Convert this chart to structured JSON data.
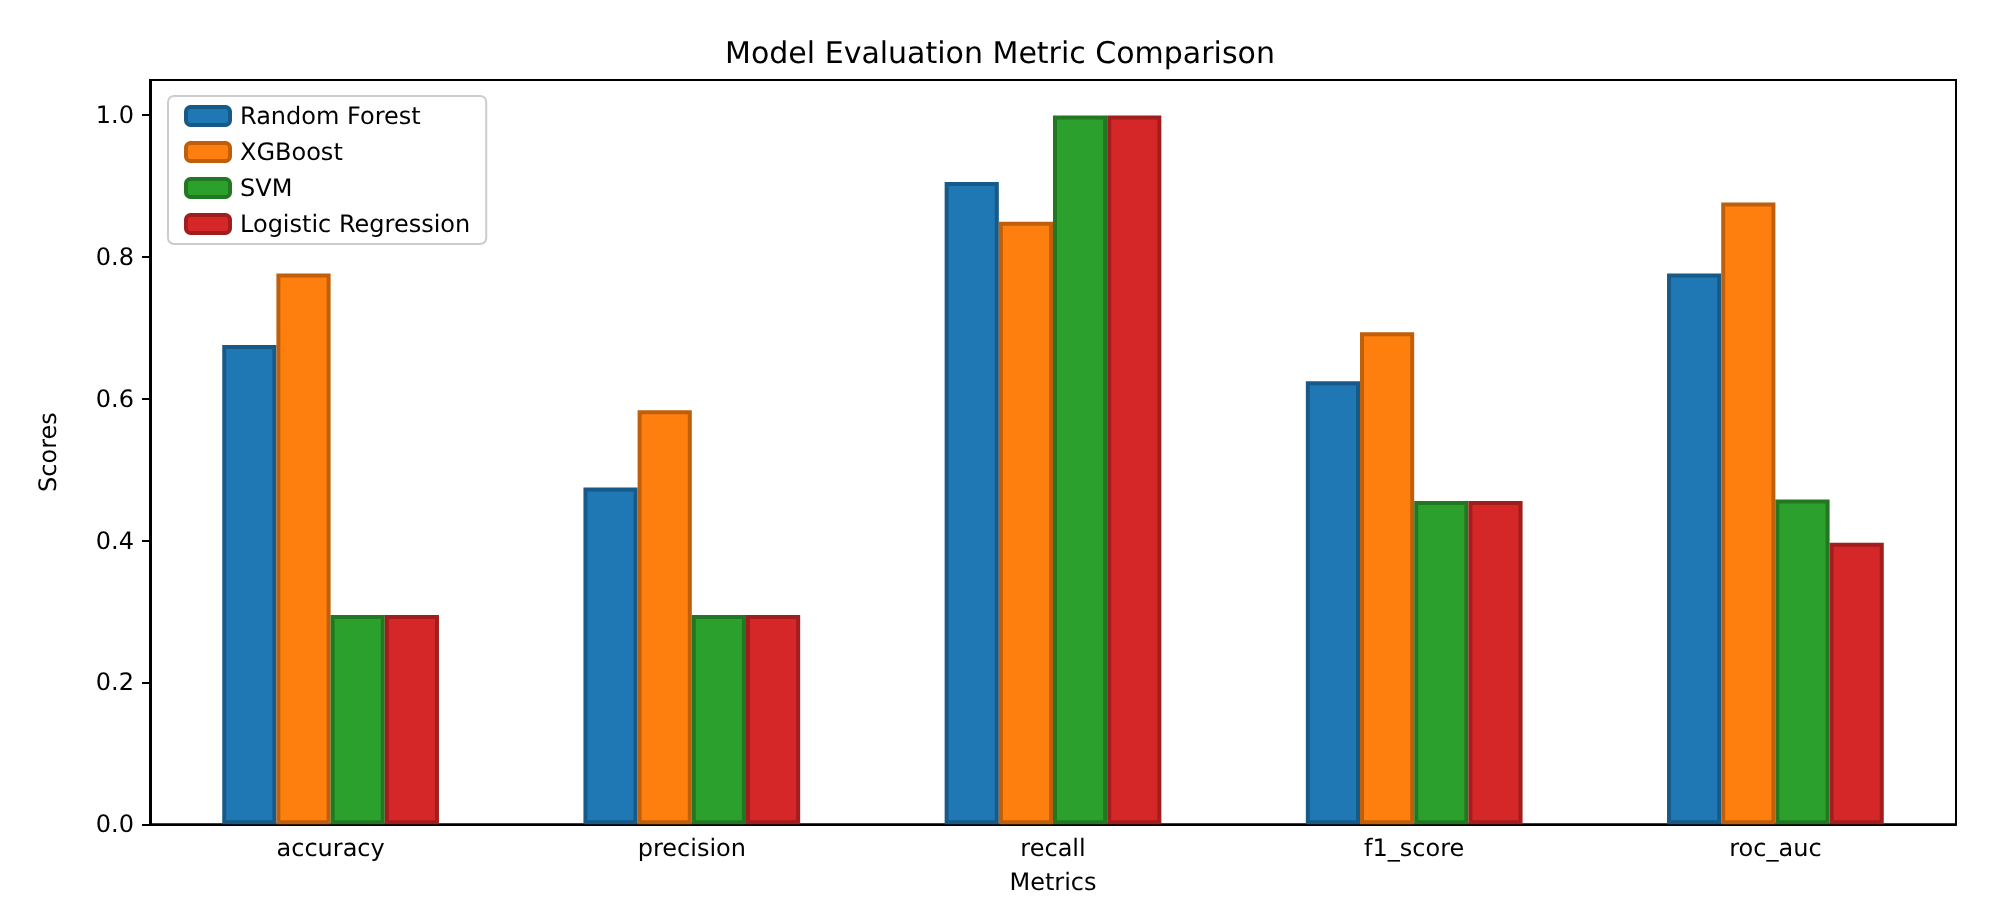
{
  "chart_data": {
    "type": "bar",
    "title": "Model Evaluation Metric Comparison",
    "xlabel": "Metrics",
    "ylabel": "Scores",
    "categories": [
      "accuracy",
      "precision",
      "recall",
      "f1_score",
      "roc_auc"
    ],
    "series": [
      {
        "name": "Random Forest",
        "color": "#1f77b4",
        "values": [
          0.676,
          0.475,
          0.906,
          0.625,
          0.777
        ]
      },
      {
        "name": "XGBoost",
        "color": "#ff7f0e",
        "values": [
          0.777,
          0.584,
          0.85,
          0.694,
          0.877
        ]
      },
      {
        "name": "SVM",
        "color": "#2ca02c",
        "values": [
          0.295,
          0.295,
          1.0,
          0.456,
          0.458
        ]
      },
      {
        "name": "Logistic Regression",
        "color": "#d62728",
        "values": [
          0.295,
          0.295,
          1.0,
          0.456,
          0.397
        ]
      }
    ],
    "ylim": [
      0,
      1.05
    ],
    "yticks": [
      {
        "value": 0,
        "label": "0.0"
      },
      0.2,
      0.4,
      0.6,
      0.8,
      {
        "value": 1,
        "label": "1.0"
      }
    ],
    "grid": false,
    "legend": "top left"
  }
}
